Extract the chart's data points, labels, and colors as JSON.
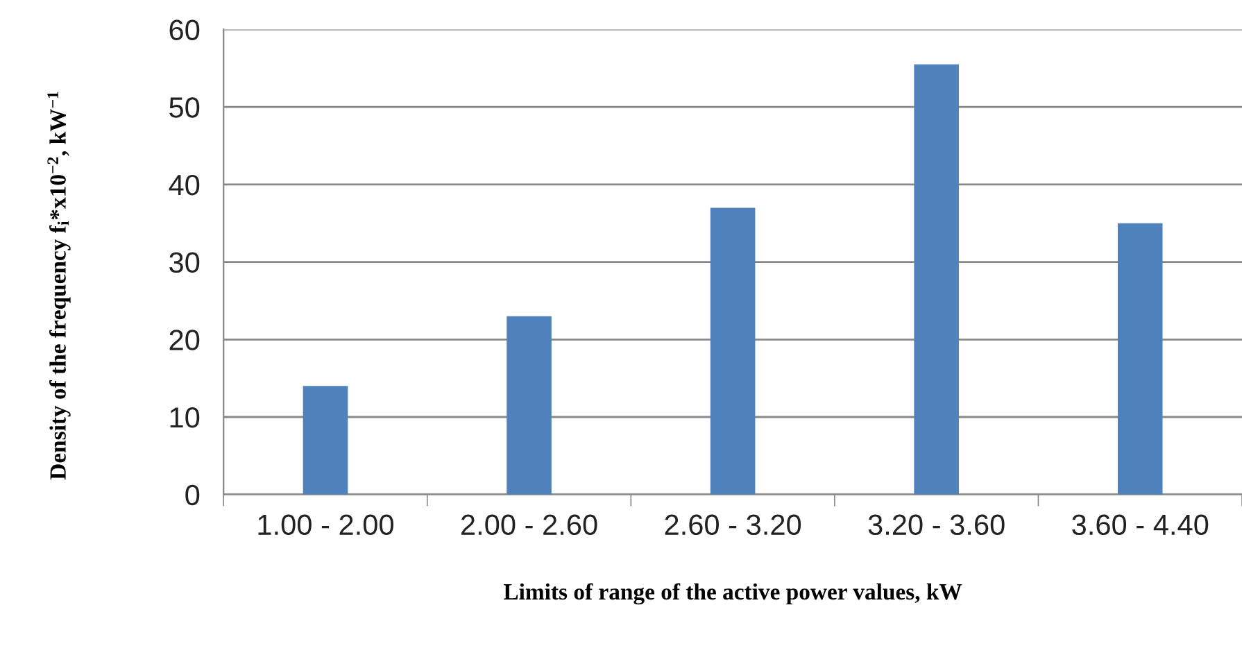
{
  "chart_data": {
    "type": "bar",
    "categories": [
      "1.00 - 2.00",
      "2.00 - 2.60",
      "2.60 - 3.20",
      "3.20 - 3.60",
      "3.60 - 4.40"
    ],
    "values": [
      14,
      23,
      37,
      55.5,
      35
    ],
    "color": "#4f81bd",
    "ylim": [
      0,
      60
    ],
    "yticks": [
      0,
      10,
      20,
      30,
      40,
      50,
      60
    ],
    "grid": "y",
    "xlabel": "Limits of range of the active power values, kW",
    "ylabel": "Density of the frequency f$_{i}$*x10$^{−2}$, kW$^{−1}$"
  }
}
